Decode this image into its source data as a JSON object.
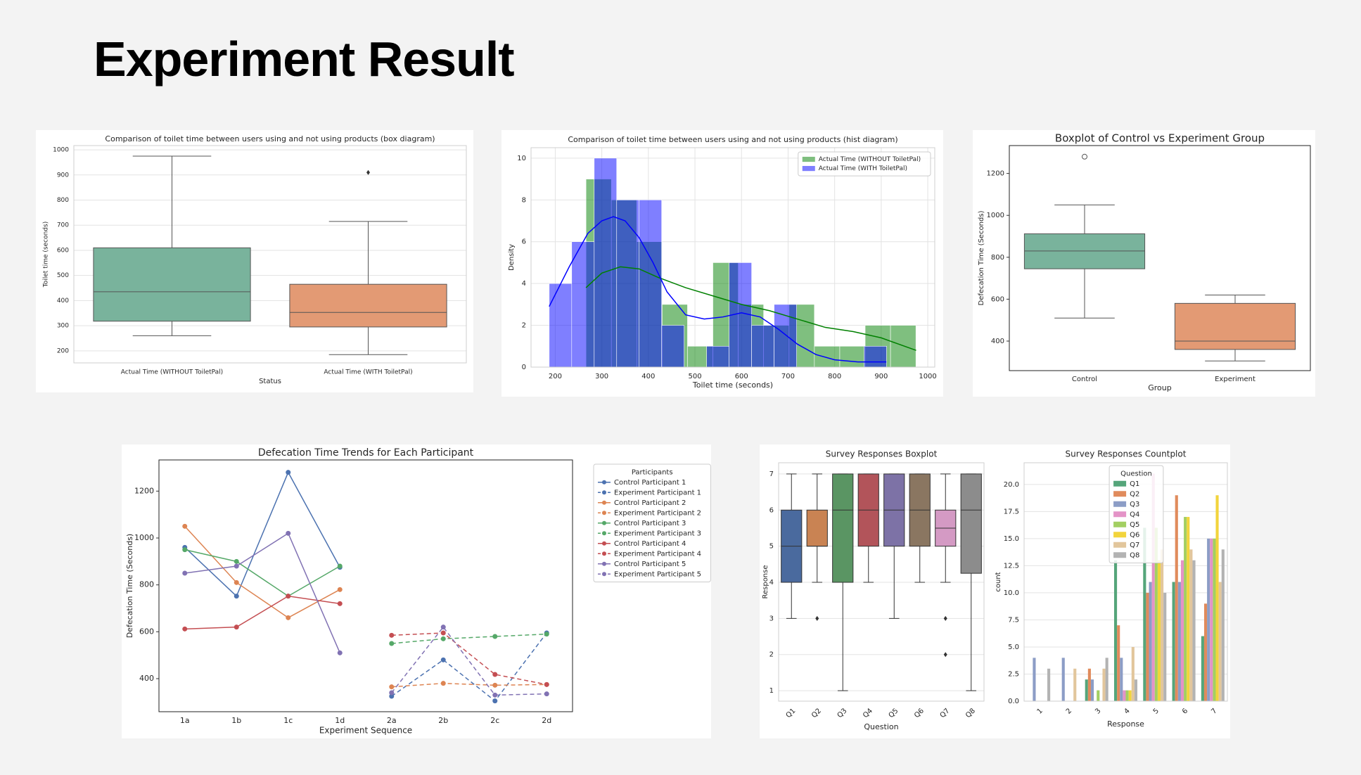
{
  "header": {
    "title": "Experiment Result"
  },
  "chart_data": [
    {
      "type": "box",
      "title": "Comparison of toilet time between users using and not using products (box diagram)",
      "xlabel": "Status",
      "ylabel": "Toilet time (seconds)",
      "categories": [
        "Actual Time (WITHOUT ToiletPal)",
        "Actual Time (WITH ToiletPal)"
      ],
      "boxes": [
        {
          "whislo": 260,
          "q1": 318,
          "med": 435,
          "q3": 610,
          "whishi": 975,
          "fliers": []
        },
        {
          "whislo": 185,
          "q1": 295,
          "med": 353,
          "q3": 465,
          "whishi": 715,
          "fliers": [
            910
          ]
        }
      ],
      "colors": [
        "#79b39c",
        "#e39a74"
      ],
      "flier_marker": "diamond",
      "ylim": [
        152,
        1017
      ],
      "yticks": [
        200,
        300,
        400,
        500,
        600,
        700,
        800,
        900,
        1000
      ],
      "grid": "y"
    },
    {
      "type": "hist",
      "title": "Comparison of toilet time between users using and not using products (hist diagram)",
      "xlabel": "Toilet time (seconds)",
      "ylabel": "Density",
      "series": [
        {
          "name": "Actual Time (WITHOUT ToiletPal)",
          "color": "green",
          "bins": [
            266,
            320.5,
            375,
            429.5,
            484,
            538.5,
            593,
            647.5,
            702,
            756.5,
            811,
            865.5,
            920,
            974.5
          ],
          "counts": [
            9,
            8,
            6,
            3,
            1,
            5,
            3,
            2,
            3,
            1,
            1,
            2,
            2
          ],
          "kde_x": [
            266,
            300,
            340,
            380,
            420,
            480,
            540,
            600,
            660,
            720,
            780,
            840,
            900,
            975
          ],
          "kde_y": [
            3.8,
            4.5,
            4.8,
            4.7,
            4.3,
            3.8,
            3.4,
            3.0,
            2.7,
            2.3,
            1.9,
            1.7,
            1.4,
            0.8
          ]
        },
        {
          "name": "Actual Time (WITH ToiletPal)",
          "color": "blue",
          "bins": [
            187,
            235.3,
            283.6,
            331.9,
            380.2,
            428.5,
            476.8,
            525.1,
            573.4,
            621.7,
            670,
            718.3,
            766.6,
            814.9,
            863.2,
            911.5
          ],
          "counts": [
            4,
            6,
            10,
            8,
            8,
            2,
            0,
            1,
            5,
            2,
            3,
            0,
            0,
            0,
            1
          ],
          "kde_x": [
            187,
            230,
            270,
            300,
            325,
            350,
            380,
            410,
            440,
            480,
            520,
            560,
            600,
            640,
            680,
            720,
            760,
            800,
            850,
            911
          ],
          "kde_y": [
            2.9,
            4.8,
            6.4,
            7.0,
            7.2,
            7.0,
            6.2,
            5.0,
            3.6,
            2.5,
            2.3,
            2.4,
            2.6,
            2.4,
            1.8,
            1.1,
            0.6,
            0.35,
            0.25,
            0.25
          ]
        }
      ],
      "alpha": 0.5,
      "xlim": [
        148,
        1015
      ],
      "xticks": [
        200,
        300,
        400,
        500,
        600,
        700,
        800,
        900,
        1000
      ],
      "ylim": [
        0,
        10.5
      ],
      "yticks": [
        0,
        2,
        4,
        6,
        8,
        10
      ],
      "grid": "both",
      "legend": "upper right"
    },
    {
      "type": "box",
      "title": "Boxplot of Control vs Experiment Group",
      "xlabel": "Group",
      "ylabel": "Defecation Time (Seconds)",
      "categories": [
        "Control",
        "Experiment"
      ],
      "boxes": [
        {
          "whislo": 510,
          "q1": 745,
          "med": 830,
          "q3": 912,
          "whishi": 1050,
          "fliers": [
            1280
          ]
        },
        {
          "whislo": 305,
          "q1": 360,
          "med": 400,
          "q3": 580,
          "whishi": 620,
          "fliers": []
        }
      ],
      "colors": [
        "#79b39c",
        "#e39a74"
      ],
      "flier_marker": "circle",
      "ylim": [
        259,
        1333
      ],
      "yticks": [
        400,
        600,
        800,
        1000,
        1200
      ],
      "grid": false
    },
    {
      "type": "line",
      "title": "Defecation Time Trends for Each Participant",
      "xlabel": "Experiment Sequence",
      "ylabel": "Defecation Time (Seconds)",
      "categories": [
        "1a",
        "1b",
        "1c",
        "1d",
        "2a",
        "2b",
        "2c",
        "2d"
      ],
      "series": [
        {
          "name": "Control Participant 1",
          "color": "#4c72b0",
          "linestyle": "solid",
          "values": [
            960,
            752,
            1280,
            875,
            null,
            null,
            null,
            null
          ]
        },
        {
          "name": "Experiment Participant 1",
          "color": "#4c72b0",
          "linestyle": "dashed",
          "values": [
            null,
            null,
            null,
            null,
            325,
            480,
            305,
            595
          ]
        },
        {
          "name": "Control Participant 2",
          "color": "#dd8452",
          "linestyle": "solid",
          "values": [
            1050,
            810,
            660,
            780,
            null,
            null,
            null,
            null
          ]
        },
        {
          "name": "Experiment Participant 2",
          "color": "#dd8452",
          "linestyle": "dashed",
          "values": [
            null,
            null,
            null,
            null,
            365,
            380,
            372,
            375
          ]
        },
        {
          "name": "Control Participant 3",
          "color": "#55a868",
          "linestyle": "solid",
          "values": [
            950,
            900,
            752,
            880,
            null,
            null,
            null,
            null
          ]
        },
        {
          "name": "Experiment Participant 3",
          "color": "#55a868",
          "linestyle": "dashed",
          "values": [
            null,
            null,
            null,
            null,
            550,
            570,
            580,
            590
          ]
        },
        {
          "name": "Control Participant 4",
          "color": "#c44e52",
          "linestyle": "solid",
          "values": [
            612,
            620,
            752,
            720,
            null,
            null,
            null,
            null
          ]
        },
        {
          "name": "Experiment Participant 4",
          "color": "#c44e52",
          "linestyle": "dashed",
          "values": [
            null,
            null,
            null,
            null,
            585,
            595,
            418,
            375
          ]
        },
        {
          "name": "Control Participant 5",
          "color": "#8172b3",
          "linestyle": "solid",
          "values": [
            850,
            880,
            1020,
            510,
            null,
            null,
            null,
            null
          ]
        },
        {
          "name": "Experiment Participant 5",
          "color": "#8172b3",
          "linestyle": "dashed",
          "values": [
            null,
            null,
            null,
            null,
            340,
            620,
            330,
            335
          ]
        }
      ],
      "ylim": [
        259,
        1333
      ],
      "yticks": [
        400,
        600,
        800,
        1000,
        1200
      ],
      "grid": false,
      "legend": "outside right",
      "legend_title": "Participants"
    },
    {
      "type": "box",
      "title": "Survey Responses Boxplot",
      "xlabel": "Question",
      "ylabel": "Response",
      "categories": [
        "Q1",
        "Q2",
        "Q3",
        "Q4",
        "Q5",
        "Q6",
        "Q7",
        "Q8"
      ],
      "boxes": [
        {
          "whislo": 3,
          "q1": 4,
          "med": 5,
          "q3": 6,
          "whishi": 7,
          "fliers": []
        },
        {
          "whislo": 4,
          "q1": 5,
          "med": 5,
          "q3": 6,
          "whishi": 7,
          "fliers": [
            3
          ]
        },
        {
          "whislo": 1,
          "q1": 4,
          "med": 6,
          "q3": 7,
          "whishi": 7,
          "fliers": []
        },
        {
          "whislo": 4,
          "q1": 5,
          "med": 6,
          "q3": 7,
          "whishi": 7,
          "fliers": []
        },
        {
          "whislo": 3,
          "q1": 5,
          "med": 6,
          "q3": 7,
          "whishi": 7,
          "fliers": []
        },
        {
          "whislo": 4,
          "q1": 5,
          "med": 6,
          "q3": 7,
          "whishi": 7,
          "fliers": []
        },
        {
          "whislo": 4,
          "q1": 5,
          "med": 5.5,
          "q3": 6,
          "whishi": 7,
          "fliers": [
            3,
            2
          ]
        },
        {
          "whislo": 1,
          "q1": 4.25,
          "med": 6,
          "q3": 7,
          "whishi": 7,
          "fliers": []
        }
      ],
      "colors": [
        "#4a6a9e",
        "#c98353",
        "#5a9563",
        "#b2545a",
        "#7d72a6",
        "#8a7661",
        "#d49ac4",
        "#8c8c8c"
      ],
      "flier_marker": "diamond",
      "ylim": [
        0.71,
        7.31
      ],
      "yticks": [
        1,
        2,
        3,
        4,
        5,
        6,
        7
      ],
      "grid": "y"
    },
    {
      "type": "bar",
      "title": "Survey Responses Countplot",
      "xlabel": "Response",
      "ylabel": "count",
      "categories": [
        "1",
        "2",
        "3",
        "4",
        "5",
        "6",
        "7"
      ],
      "series": [
        {
          "name": "Q1",
          "color": "#55a57a",
          "values": [
            0,
            0,
            2,
            13,
            16,
            11,
            6
          ]
        },
        {
          "name": "Q2",
          "color": "#e08b5c",
          "values": [
            0,
            0,
            3,
            7,
            10,
            19,
            9
          ]
        },
        {
          "name": "Q3",
          "color": "#8c9dc6",
          "values": [
            4,
            4,
            2,
            4,
            11,
            11,
            15
          ]
        },
        {
          "name": "Q4",
          "color": "#e493c7",
          "values": [
            0,
            0,
            0,
            1,
            21,
            13,
            15
          ]
        },
        {
          "name": "Q5",
          "color": "#a3cf62",
          "values": [
            0,
            0,
            1,
            1,
            16,
            17,
            15
          ]
        },
        {
          "name": "Q6",
          "color": "#f2d43c",
          "values": [
            0,
            0,
            0,
            1,
            13,
            17,
            19
          ]
        },
        {
          "name": "Q7",
          "color": "#e2c69c",
          "values": [
            0,
            3,
            3,
            5,
            14,
            14,
            11
          ]
        },
        {
          "name": "Q8",
          "color": "#b3b3b3",
          "values": [
            3,
            0,
            4,
            2,
            10,
            13,
            14
          ]
        }
      ],
      "ylim": [
        0,
        22
      ],
      "yticks": [
        {
          "value": 0,
          "label": "0.0"
        },
        2.5,
        {
          "value": 5,
          "label": "5.0"
        },
        7.5,
        {
          "value": 10,
          "label": "10.0"
        },
        12.5,
        {
          "value": 15,
          "label": "15.0"
        },
        17.5,
        {
          "value": 20,
          "label": "20.0"
        }
      ],
      "grid": "y",
      "legend": "upper center",
      "legend_title": "Question"
    }
  ]
}
